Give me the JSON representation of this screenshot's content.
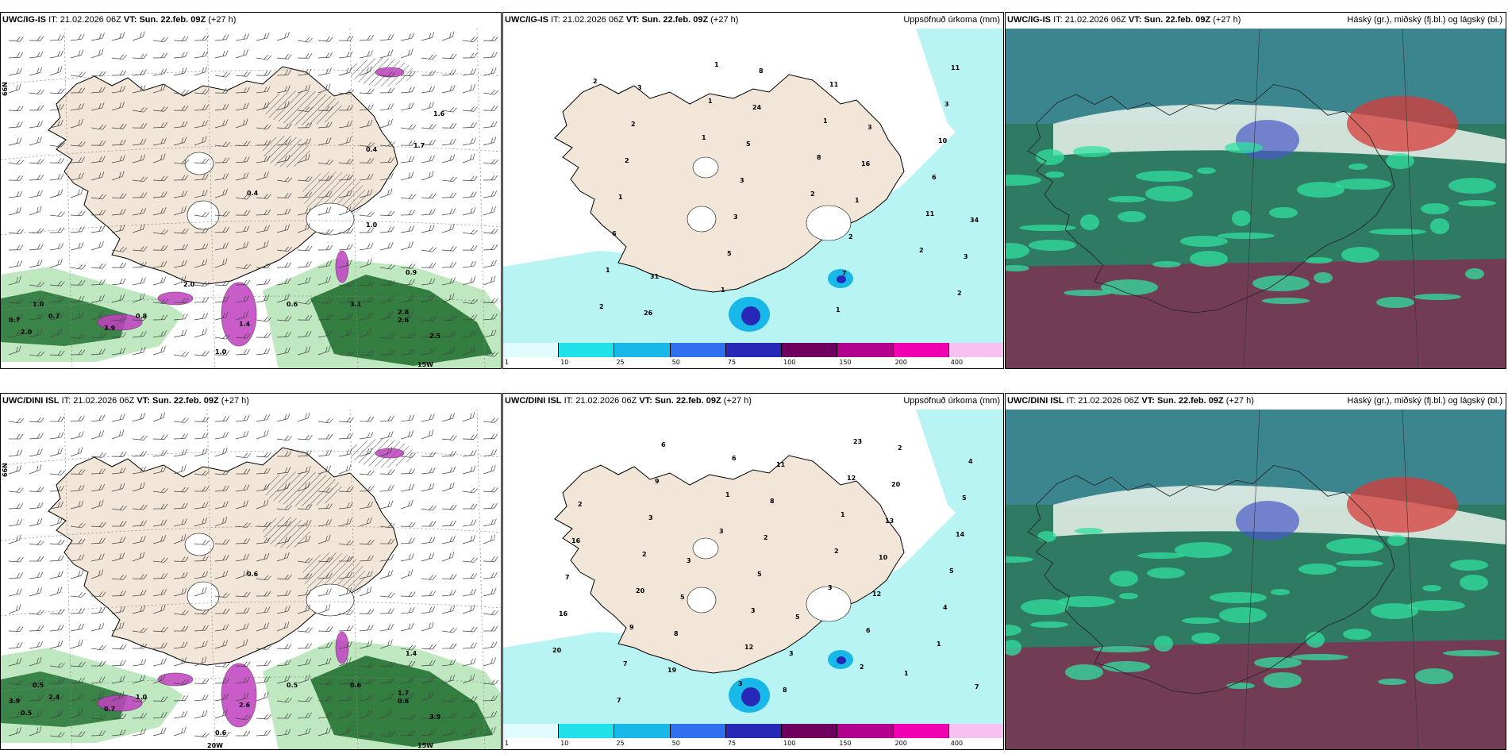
{
  "panels": [
    {
      "id": "r1c1",
      "model": "UWC/IG-IS",
      "it_label": "IT:",
      "it": "21.02.2026 06Z",
      "vt_label": "VT:",
      "vt": "Sun. 22.feb. 09Z",
      "lead": "(+27 h)",
      "right_title": "",
      "lat_labels": [
        "66N"
      ],
      "lon_labels": [
        "15W"
      ],
      "values": [
        "1.0",
        "0.7",
        "0.7",
        "3.9",
        "2.0",
        "1.4",
        "0.8",
        "1.0",
        "0.4",
        "0.6",
        "3.1",
        "2.8",
        "2.6",
        "2.5",
        "0.9",
        "2.0",
        "0.4",
        "1.0",
        "1.7",
        "1.6"
      ]
    },
    {
      "id": "r1c2",
      "model": "UWC/IG-IS",
      "it_label": "IT:",
      "it": "21.02.2026 06Z",
      "vt_label": "VT:",
      "vt": "Sun. 22.feb. 09Z",
      "lead": "(+27 h)",
      "right_title": "Uppsöfnuð úrkoma (mm)",
      "values": [
        "2",
        "1",
        "2",
        "2",
        "2",
        "1",
        "8",
        "11",
        "1",
        "1",
        "1",
        "6",
        "6",
        "1",
        "11",
        "10",
        "1",
        "5",
        "1",
        "3",
        "2",
        "3",
        "7",
        "11",
        "2",
        "3",
        "2",
        "2",
        "3",
        "5",
        "1",
        "3",
        "26",
        "24",
        "16",
        "34",
        "31",
        "8",
        "3"
      ]
    },
    {
      "id": "r1c3",
      "model": "UWC/IG-IS",
      "it_label": "IT:",
      "it": "21.02.2026 06Z",
      "vt_label": "VT:",
      "vt": "Sun. 22.feb. 09Z",
      "lead": "(+27 h)",
      "right_title": "Háský (gr.), miðský (fj.bl.) og lágský (bl.)"
    },
    {
      "id": "r2c1",
      "model": "UWC/DINI ISL",
      "it_label": "IT:",
      "it": "21.02.2026 06Z",
      "vt_label": "VT:",
      "vt": "Sun. 22.feb. 09Z",
      "lead": "(+27 h)",
      "right_title": "",
      "lat_labels": [
        "66N"
      ],
      "lon_labels": [
        "20W",
        "15W"
      ],
      "values": [
        "0.5",
        "3.9",
        "2.4",
        "0.7",
        "0.5",
        "2.6",
        "1.0",
        "0.6",
        "0.6",
        "0.5",
        "0.6",
        "1.7",
        "0.6",
        "3.9",
        "1.4"
      ]
    },
    {
      "id": "r2c2",
      "model": "UWC/DINI ISL",
      "it_label": "IT:",
      "it": "21.02.2026 06Z",
      "vt_label": "VT:",
      "vt": "Sun. 22.feb. 09Z",
      "lead": "(+27 h)",
      "right_title": "Uppsöfnuð úrkoma (mm)",
      "values": [
        "3",
        "3",
        "1",
        "7",
        "1",
        "2",
        "4",
        "7",
        "6",
        "1",
        "5",
        "9",
        "3",
        "12",
        "14",
        "20",
        "12",
        "23",
        "5",
        "2",
        "3",
        "2",
        "4",
        "3",
        "5",
        "6",
        "7",
        "9",
        "2",
        "12",
        "20",
        "6",
        "8",
        "10",
        "16",
        "19",
        "11",
        "13",
        "7",
        "8",
        "8",
        "20",
        "16",
        "5",
        "3",
        "2",
        "2",
        "3",
        "5",
        "1"
      ]
    },
    {
      "id": "r2c3",
      "model": "UWC/DINI ISL",
      "it_label": "IT:",
      "it": "21.02.2026 06Z",
      "vt_label": "VT:",
      "vt": "Sun. 22.feb. 09Z",
      "lead": "(+27 h)",
      "right_title": "Háský (gr.), miðský (fj.bl.) og lágský (bl.)"
    }
  ],
  "colorbar": {
    "ticks": [
      "1",
      "10",
      "25",
      "50",
      "75",
      "100",
      "150",
      "200",
      "400"
    ],
    "colors": [
      "#e0fbfb",
      "#20e0e8",
      "#18b8e8",
      "#3070f0",
      "#2828b8",
      "#700060",
      "#b0008c",
      "#f000b0",
      "#f8c0f0"
    ]
  },
  "colors": {
    "land": "#f2e6d8",
    "sea_precip": "#b8f4f4",
    "green_dark": "#1a6a2a",
    "green_light": "#bfe8c0",
    "magenta": "#c040c0"
  }
}
